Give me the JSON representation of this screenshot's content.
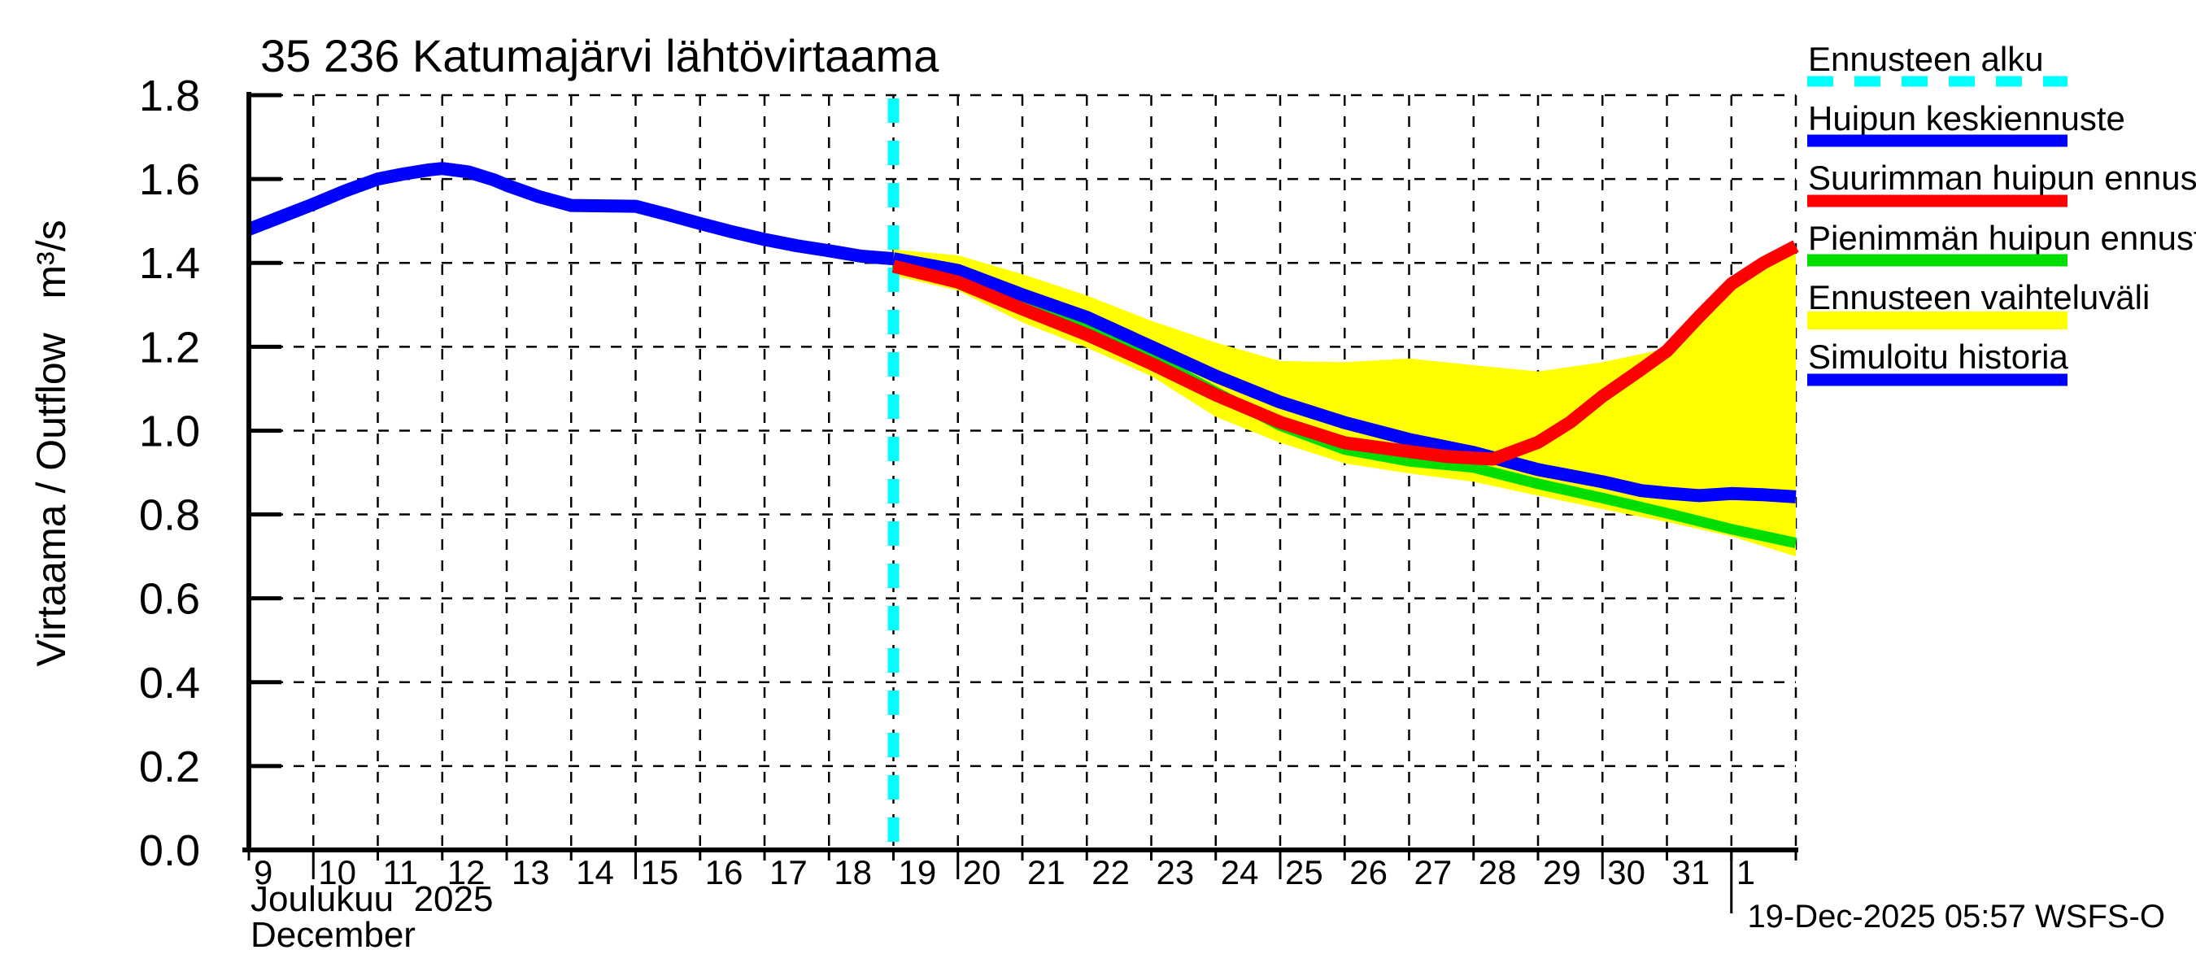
{
  "title": "35 236 Katumajärvi lähtövirtaama",
  "y_axis": {
    "label": "Virtaama / Outflow   m³/s"
  },
  "x_axis": {
    "month_fi": "Joulukuu  2025",
    "month_en": "December"
  },
  "footer": {
    "generated": "19-Dec-2025 05:57 WSFS-O"
  },
  "colors": {
    "forecast_start": "#00ffff",
    "mean_peak": "#0000ff",
    "max_peak": "#ff0000",
    "min_peak": "#00dd00",
    "range_band": "#ffff00",
    "history": "#0000ff",
    "grid": "#000000"
  },
  "legend": [
    {
      "label": "Ennusteen alku",
      "color": "#00ffff",
      "style": "dashed"
    },
    {
      "label": "Huipun keskiennuste",
      "color": "#0000ff",
      "style": "solid"
    },
    {
      "label": "Suurimman huipun ennuste",
      "color": "#ff0000",
      "style": "solid"
    },
    {
      "label": "Pienimmän huipun ennuste",
      "color": "#00dd00",
      "style": "solid"
    },
    {
      "label": "Ennusteen vaihteluväli",
      "color": "#ffff00",
      "style": "solid-thick"
    },
    {
      "label": "Simuloitu historia",
      "color": "#0000ff",
      "style": "solid"
    }
  ],
  "chart_data": {
    "type": "line",
    "title": "35 236 Katumajärvi lähtövirtaama",
    "y_label": "Virtaama / Outflow m³/s",
    "x_unit": "day (December 2025; 32 = Jan 1, 33 = Jan 2)",
    "y_range": [
      0.0,
      1.8
    ],
    "y_tick_step": 0.2,
    "x_range": [
      9,
      33
    ],
    "x_tick_labels": [
      "9",
      "10",
      "11",
      "12",
      "13",
      "14",
      "15",
      "16",
      "17",
      "18",
      "19",
      "20",
      "21",
      "22",
      "23",
      "24",
      "25",
      "26",
      "27",
      "28",
      "29",
      "30",
      "31",
      "1"
    ],
    "x_major_ticks": [
      10,
      15,
      20,
      25,
      30
    ],
    "month_boundary_day": 32,
    "forecast_start_day": 19,
    "grid": "dashed",
    "legend_position": "top-right-outside",
    "band": {
      "name": "Ennusteen vaihteluväli",
      "color": "#ffff00",
      "days": [
        19,
        20,
        21,
        22,
        23,
        24,
        25,
        26,
        27,
        28,
        29,
        30,
        31,
        31.5,
        32,
        32.5,
        33
      ],
      "upper": [
        1.432,
        1.418,
        1.373,
        1.322,
        1.262,
        1.21,
        1.166,
        1.163,
        1.172,
        1.156,
        1.141,
        1.163,
        1.196,
        1.27,
        1.34,
        1.392,
        1.428
      ],
      "lower_days": [
        19,
        20,
        21,
        22,
        23,
        24,
        25,
        26,
        27,
        28,
        29,
        30,
        31,
        32,
        33
      ],
      "lower": [
        1.37,
        1.334,
        1.258,
        1.198,
        1.13,
        1.033,
        0.971,
        0.922,
        0.898,
        0.878,
        0.845,
        0.813,
        0.782,
        0.748,
        0.7
      ]
    },
    "series": [
      {
        "name": "Pienimmän huipun ennuste",
        "color": "#00dd00",
        "width": 13,
        "days": [
          19,
          20,
          21,
          22,
          23,
          24,
          25,
          26,
          27,
          28,
          29,
          30,
          31,
          32,
          33
        ],
        "values": [
          1.4,
          1.36,
          1.302,
          1.247,
          1.176,
          1.092,
          1.012,
          0.955,
          0.927,
          0.912,
          0.873,
          0.839,
          0.803,
          0.765,
          0.732
        ]
      },
      {
        "name": "Huipun keskiennuste",
        "color": "#0000ff",
        "width": 16,
        "days": [
          19,
          20,
          21,
          22,
          23,
          24,
          25,
          26,
          27,
          28,
          29,
          30,
          30.6,
          31,
          31.5,
          32,
          32.5,
          33
        ],
        "values": [
          1.41,
          1.382,
          1.324,
          1.27,
          1.2,
          1.13,
          1.068,
          1.019,
          0.979,
          0.948,
          0.907,
          0.878,
          0.857,
          0.851,
          0.845,
          0.85,
          0.847,
          0.842
        ]
      },
      {
        "name": "Suurimman huipun ennuste",
        "color": "#ff0000",
        "width": 16,
        "days": [
          19,
          20,
          21,
          22,
          23,
          24,
          25,
          26,
          27,
          27.6,
          28.3,
          29,
          29.5,
          30,
          30.5,
          31,
          31.5,
          32,
          32.5,
          33
        ],
        "values": [
          1.392,
          1.354,
          1.29,
          1.229,
          1.16,
          1.085,
          1.02,
          0.971,
          0.95,
          0.938,
          0.932,
          0.972,
          1.02,
          1.082,
          1.135,
          1.19,
          1.272,
          1.35,
          1.4,
          1.44
        ]
      },
      {
        "name": "Simuloitu historia",
        "color": "#0000ff",
        "width": 16,
        "days": [
          9,
          9.5,
          10,
          10.5,
          11,
          11.4,
          11.8,
          12,
          12.4,
          12.8,
          13,
          13.5,
          14,
          14.5,
          15,
          15.5,
          16,
          16.5,
          17,
          17.5,
          18,
          18.5,
          19
        ],
        "values": [
          1.48,
          1.51,
          1.54,
          1.572,
          1.6,
          1.612,
          1.622,
          1.625,
          1.617,
          1.598,
          1.585,
          1.558,
          1.537,
          1.536,
          1.535,
          1.515,
          1.494,
          1.474,
          1.456,
          1.441,
          1.429,
          1.416,
          1.41
        ]
      }
    ]
  }
}
